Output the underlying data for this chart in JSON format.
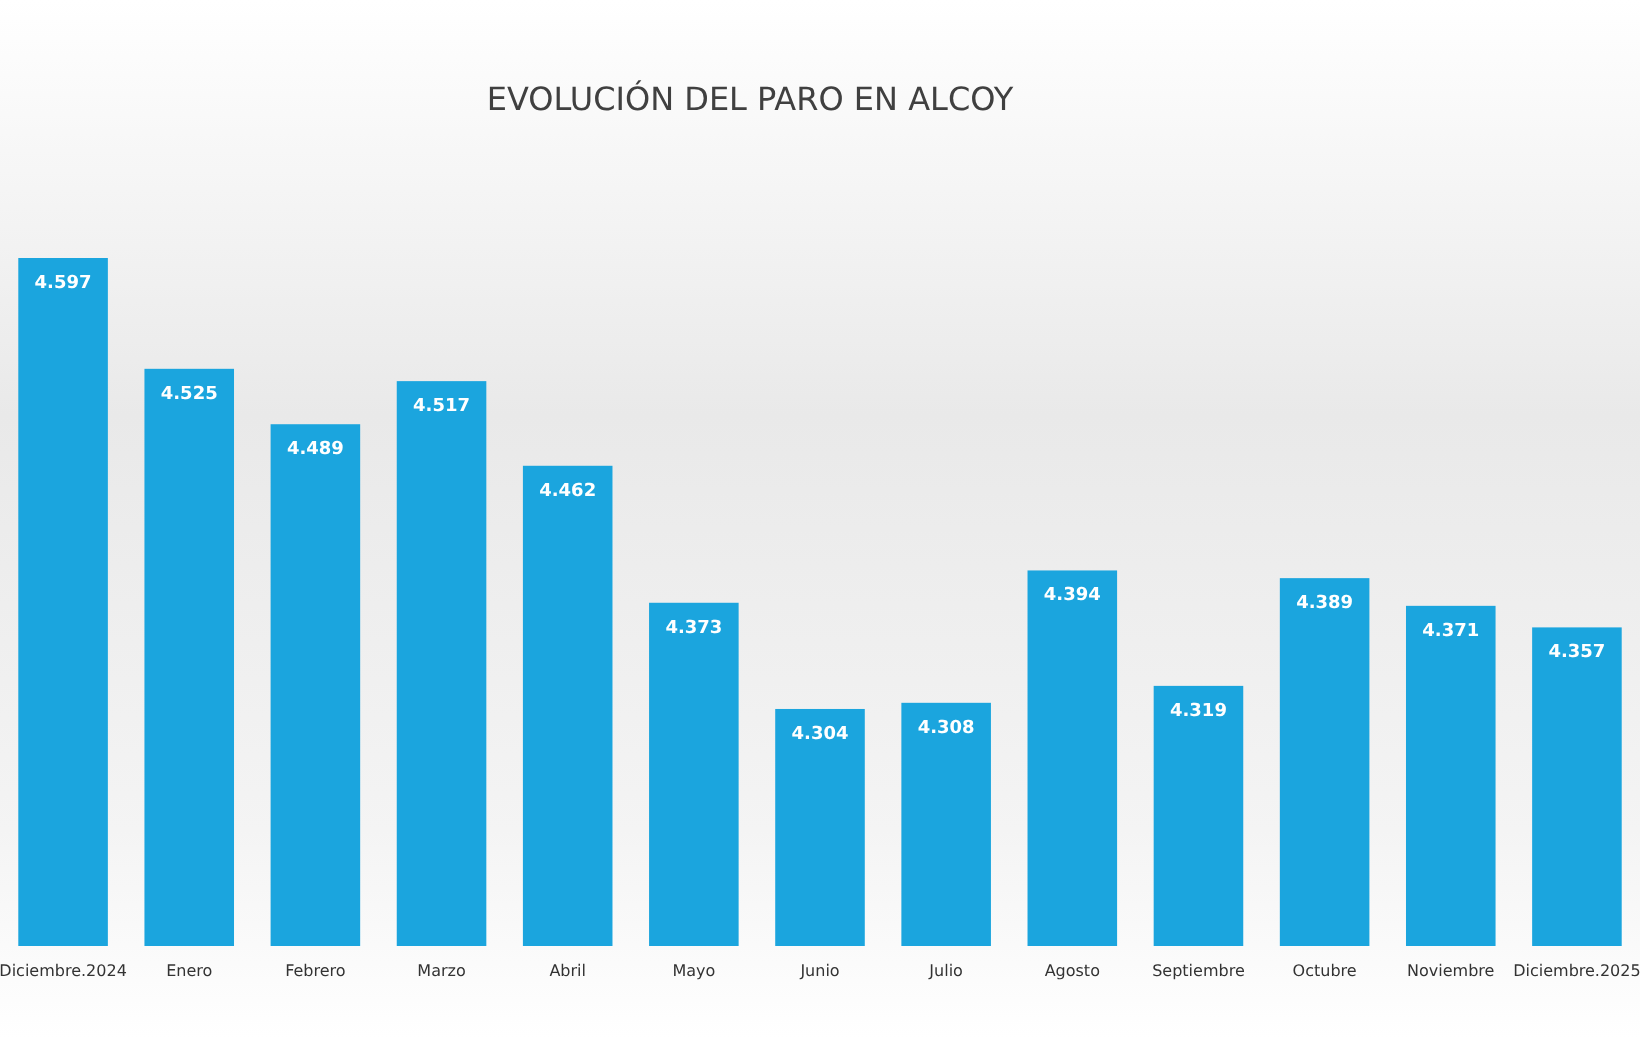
{
  "chart_data": {
    "type": "bar",
    "title": "EVOLUCIÓN DEL PARO EN ALCOY",
    "categories": [
      "Diciembre.2024",
      "Enero",
      "Febrero",
      "Marzo",
      "Abril",
      "Mayo",
      "Junio",
      "Julio",
      "Agosto",
      "Septiembre",
      "Octubre",
      "Noviembre",
      "Diciembre.2025"
    ],
    "values": [
      4597,
      4525,
      4489,
      4517,
      4462,
      4373,
      4304,
      4308,
      4394,
      4319,
      4389,
      4371,
      4357
    ],
    "value_labels": [
      "4.597",
      "4.525",
      "4.489",
      "4.517",
      "4.462",
      "4.373",
      "4.304",
      "4.308",
      "4.394",
      "4.319",
      "4.389",
      "4.371",
      "4.357"
    ],
    "color": "#1ba5de",
    "ylim": [
      4150,
      4597
    ],
    "tick_labels": "x",
    "grid": false
  }
}
